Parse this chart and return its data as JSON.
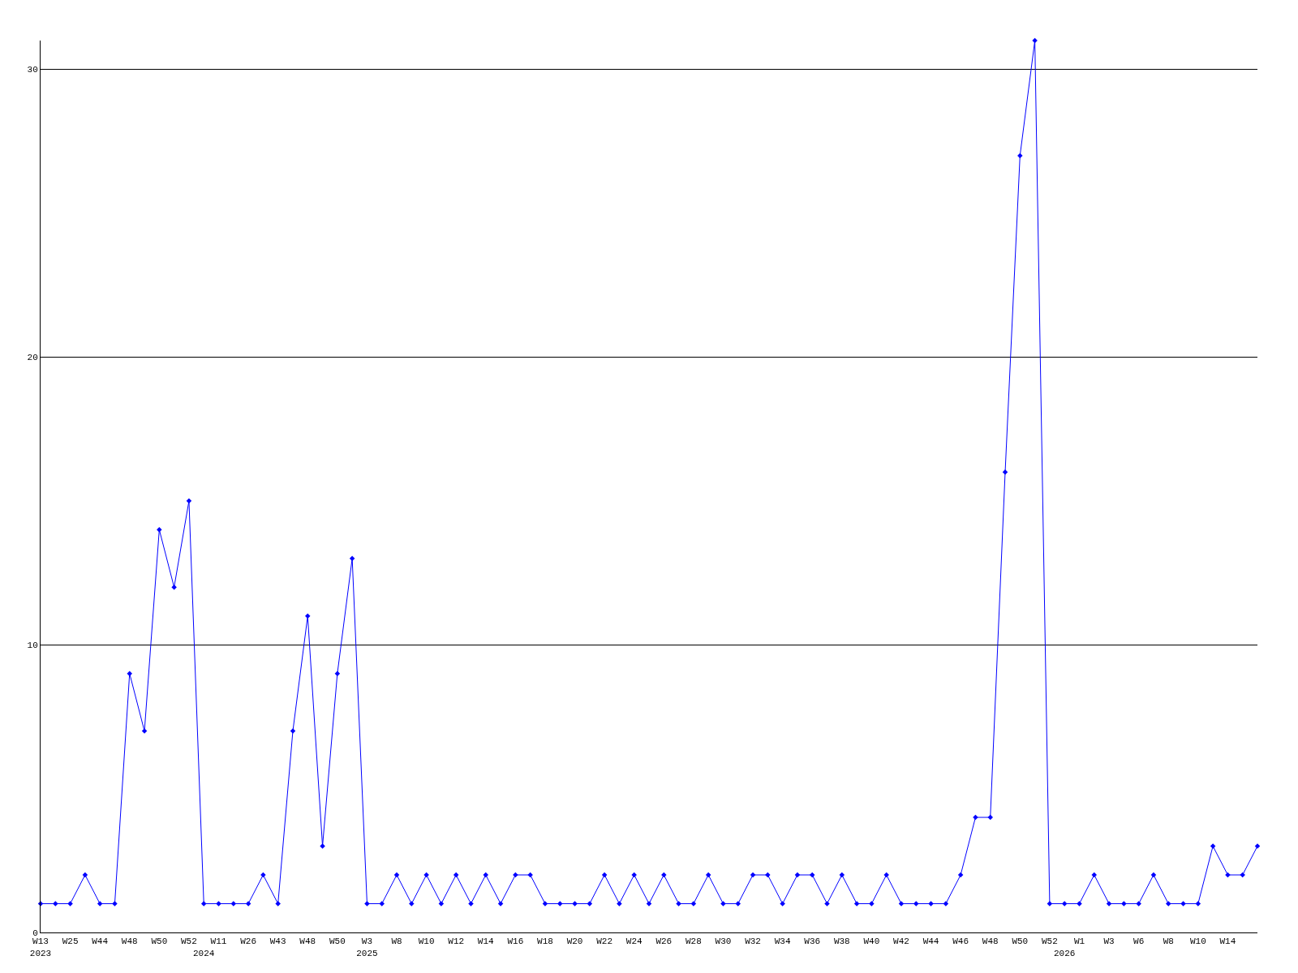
{
  "chart_data": {
    "type": "line",
    "categories": [
      "W13\n2023",
      null,
      "W25",
      null,
      "W44",
      null,
      "W48",
      null,
      "W50",
      null,
      "W52",
      "\n2024",
      "W11",
      null,
      "W26",
      null,
      "W43",
      null,
      "W48",
      null,
      "W50",
      null,
      "W3\n2025",
      null,
      "W8",
      null,
      "W10",
      null,
      "W12",
      null,
      "W14",
      null,
      "W16",
      null,
      "W18",
      null,
      "W20",
      null,
      "W22",
      null,
      "W24",
      null,
      "W26",
      null,
      "W28",
      null,
      "W30",
      null,
      "W32",
      null,
      "W34",
      null,
      "W36",
      null,
      "W38",
      null,
      "W40",
      null,
      "W42",
      null,
      "W44",
      null,
      "W46",
      null,
      "W48",
      null,
      "W50",
      null,
      "W52",
      "\n2026",
      "W1",
      null,
      "W3",
      null,
      "W6",
      null,
      "W8",
      null,
      "W10",
      null,
      "W14",
      null,
      null
    ],
    "series": [
      {
        "color": "#0000ff",
        "values": [
          1,
          1,
          1,
          2,
          1,
          1,
          9,
          7,
          14,
          12,
          15,
          1,
          1,
          1,
          1,
          2,
          1,
          7,
          11,
          3,
          9,
          13,
          1,
          1,
          2,
          1,
          2,
          1,
          2,
          1,
          2,
          1,
          2,
          2,
          1,
          1,
          1,
          1,
          2,
          1,
          2,
          1,
          2,
          1,
          1,
          2,
          1,
          1,
          2,
          2,
          1,
          2,
          2,
          1,
          2,
          1,
          1,
          2,
          1,
          1,
          1,
          1,
          2,
          4,
          4,
          16,
          27,
          31,
          1,
          1,
          1,
          2,
          1,
          1,
          1,
          2,
          1,
          1,
          1,
          3,
          2,
          2,
          3
        ]
      }
    ],
    "ylim": [
      0,
      31
    ],
    "yticks": [
      0,
      10,
      20,
      30
    ],
    "grid": "y",
    "legend": false,
    "marker": "diamond",
    "line_style": "solid"
  }
}
